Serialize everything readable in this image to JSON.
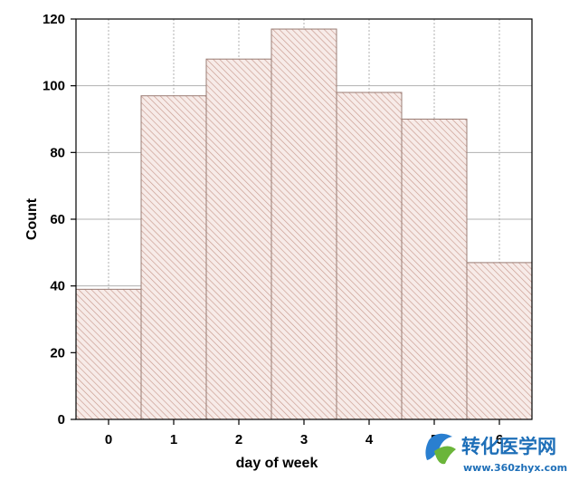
{
  "chart_data": {
    "type": "bar",
    "title": "",
    "xlabel": "day of week",
    "ylabel": "Count",
    "categories": [
      "0",
      "1",
      "2",
      "3",
      "4",
      "5",
      "6"
    ],
    "values": [
      39,
      97,
      108,
      117,
      98,
      90,
      47
    ],
    "ylim": [
      0,
      120
    ],
    "yticks": [
      "0",
      "20",
      "40",
      "60",
      "80",
      "100",
      "120"
    ],
    "grid": true,
    "bar_fill": "#f7ebe8",
    "bar_hatch_color": "#c89a8e",
    "bar_edge_color": "#9a7c74",
    "grid_color": "#b0b0b0"
  },
  "watermark": {
    "title": "转化医学网",
    "url": "www.360zhyx.com",
    "color": "#1e6fb8"
  }
}
